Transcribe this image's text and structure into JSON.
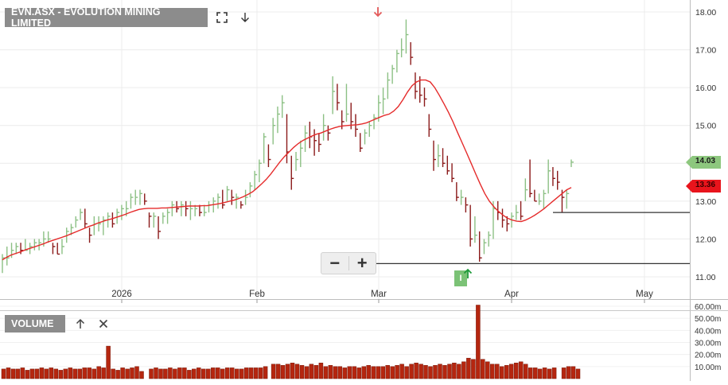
{
  "header": {
    "title": "EVN.ASX - EVOLUTION MINING LIMITED"
  },
  "toolbar": {
    "expand_icon": "expand-icon",
    "download_icon": "download-arrow-icon"
  },
  "volume_panel": {
    "title": "VOLUME",
    "up_icon": "arrow-up-icon",
    "close_icon": "close-icon"
  },
  "price_badges": {
    "last": "14.03",
    "sma": "13.36"
  },
  "marker": {
    "label": "I"
  },
  "zoom": {
    "minus": "−",
    "plus": "+"
  },
  "colors": {
    "up": "#8cc084",
    "down": "#8b1a1a",
    "sma": "#e52b2b",
    "volume": "#b5260f",
    "last_badge": "#8dc77e",
    "sma_badge": "#e8141c",
    "grid": "#ececec"
  },
  "chart_data": [
    {
      "type": "ohlc",
      "title": "EVN.ASX - EVOLUTION MINING LIMITED",
      "x_labels": [
        "2026",
        "Feb",
        "Mar",
        "Apr",
        "May"
      ],
      "y_ticks": [
        "11.00",
        "12.00",
        "13.00",
        "14.00",
        "15.00",
        "16.00",
        "17.00",
        "18.00"
      ],
      "ylim": [
        10.8,
        18.3
      ],
      "grid": true,
      "last_price": 14.03,
      "sma_last": 13.36,
      "horizontal_lines": [
        11.35,
        12.7
      ],
      "series": [
        {
          "values": [
            [
              11.6,
              11.1,
              11.5
            ],
            [
              11.8,
              11.3,
              11.5
            ],
            [
              11.9,
              11.5,
              11.7
            ],
            [
              11.9,
              11.6,
              11.8
            ],
            [
              11.9,
              11.6,
              11.7
            ],
            [
              12.0,
              11.7,
              11.7
            ],
            [
              11.9,
              11.6,
              11.8
            ],
            [
              12.0,
              11.7,
              11.9
            ],
            [
              12.0,
              11.7,
              11.9
            ],
            [
              12.2,
              11.8,
              12.0
            ],
            [
              12.2,
              11.9,
              12.0
            ],
            [
              11.9,
              11.6,
              11.8
            ],
            [
              11.9,
              11.6,
              11.6
            ],
            [
              12.0,
              11.6,
              11.8
            ],
            [
              12.3,
              11.9,
              12.2
            ],
            [
              12.4,
              12.1,
              12.3
            ],
            [
              12.6,
              12.3,
              12.5
            ],
            [
              12.8,
              12.5,
              12.7
            ],
            [
              12.8,
              12.3,
              12.4
            ],
            [
              12.3,
              11.9,
              12.1
            ],
            [
              12.6,
              12.1,
              12.4
            ],
            [
              12.6,
              12.2,
              12.4
            ],
            [
              12.6,
              12.1,
              12.5
            ],
            [
              12.7,
              12.3,
              12.6
            ],
            [
              12.7,
              12.3,
              12.4
            ],
            [
              12.8,
              12.4,
              12.7
            ],
            [
              12.9,
              12.5,
              12.8
            ],
            [
              13.0,
              12.6,
              12.8
            ],
            [
              13.2,
              12.8,
              13.1
            ],
            [
              13.3,
              12.9,
              13.1
            ],
            [
              13.3,
              12.9,
              13.2
            ],
            [
              13.2,
              12.9,
              13.0
            ],
            [
              12.7,
              12.3,
              12.6
            ],
            [
              12.7,
              12.3,
              12.6
            ],
            [
              12.6,
              12.0,
              12.2
            ],
            [
              12.7,
              12.4,
              12.6
            ],
            [
              12.8,
              12.4,
              12.7
            ],
            [
              13.0,
              12.6,
              12.9
            ],
            [
              13.0,
              12.7,
              12.8
            ],
            [
              13.0,
              12.6,
              12.9
            ],
            [
              13.0,
              12.6,
              12.8
            ],
            [
              13.0,
              12.5,
              12.8
            ],
            [
              12.9,
              12.6,
              12.8
            ],
            [
              12.9,
              12.6,
              12.7
            ],
            [
              12.9,
              12.6,
              12.7
            ],
            [
              13.0,
              12.7,
              12.9
            ],
            [
              13.1,
              12.7,
              13.0
            ],
            [
              13.2,
              12.8,
              13.1
            ],
            [
              13.3,
              12.8,
              12.9
            ],
            [
              13.4,
              13.0,
              13.3
            ],
            [
              13.3,
              12.9,
              13.1
            ],
            [
              13.2,
              12.8,
              13.1
            ],
            [
              13.0,
              12.8,
              12.9
            ],
            [
              13.3,
              12.9,
              13.1
            ],
            [
              13.5,
              13.1,
              13.4
            ],
            [
              13.8,
              13.3,
              13.7
            ],
            [
              14.1,
              13.5,
              14.0
            ],
            [
              14.8,
              14.0,
              14.7
            ],
            [
              14.5,
              13.9,
              14.1
            ],
            [
              15.2,
              14.5,
              15.0
            ],
            [
              15.5,
              14.8,
              15.3
            ],
            [
              15.8,
              15.2,
              15.6
            ],
            [
              15.3,
              14.0,
              14.3
            ],
            [
              14.2,
              13.3,
              13.6
            ],
            [
              14.3,
              13.8,
              14.1
            ],
            [
              14.6,
              13.9,
              14.4
            ],
            [
              15.0,
              14.3,
              14.8
            ],
            [
              15.1,
              14.4,
              14.7
            ],
            [
              14.9,
              14.2,
              14.6
            ],
            [
              14.8,
              14.3,
              14.5
            ],
            [
              15.3,
              14.6,
              15.0
            ],
            [
              15.0,
              14.6,
              14.8
            ],
            [
              16.3,
              15.3,
              15.9
            ],
            [
              16.1,
              15.4,
              15.6
            ],
            [
              15.4,
              14.9,
              15.1
            ],
            [
              16.1,
              15.1,
              15.3
            ],
            [
              15.6,
              14.9,
              15.1
            ],
            [
              15.3,
              14.7,
              14.9
            ],
            [
              14.8,
              14.3,
              14.4
            ],
            [
              14.9,
              14.5,
              14.8
            ],
            [
              15.1,
              14.7,
              15.0
            ],
            [
              15.3,
              14.9,
              15.2
            ],
            [
              15.8,
              15.1,
              15.6
            ],
            [
              16.0,
              15.3,
              15.7
            ],
            [
              16.4,
              15.7,
              16.2
            ],
            [
              16.6,
              16.1,
              16.5
            ],
            [
              17.0,
              16.4,
              16.9
            ],
            [
              17.3,
              16.8,
              17.0
            ],
            [
              17.8,
              16.9,
              17.4
            ],
            [
              17.2,
              16.6,
              16.8
            ],
            [
              16.4,
              15.7,
              15.9
            ],
            [
              16.3,
              15.6,
              15.8
            ],
            [
              16.0,
              15.5,
              15.7
            ],
            [
              15.3,
              14.7,
              14.9
            ],
            [
              14.6,
              13.8,
              14.1
            ],
            [
              14.5,
              13.9,
              14.2
            ],
            [
              14.4,
              13.9,
              14.0
            ],
            [
              14.2,
              13.7,
              13.8
            ],
            [
              14.0,
              13.5,
              13.6
            ],
            [
              13.5,
              13.0,
              13.1
            ],
            [
              13.3,
              12.9,
              13.1
            ],
            [
              13.1,
              12.7,
              12.9
            ],
            [
              12.9,
              11.8,
              12.0
            ],
            [
              12.6,
              11.9,
              12.1
            ],
            [
              12.2,
              11.4,
              11.5
            ],
            [
              12.0,
              11.6,
              11.9
            ],
            [
              12.2,
              11.8,
              12.1
            ],
            [
              13.0,
              12.0,
              12.8
            ],
            [
              13.0,
              12.5,
              12.7
            ],
            [
              12.8,
              12.3,
              12.5
            ],
            [
              12.6,
              12.2,
              12.4
            ],
            [
              12.7,
              12.3,
              12.6
            ],
            [
              12.9,
              12.5,
              12.7
            ],
            [
              13.0,
              12.5,
              12.6
            ],
            [
              13.6,
              13.0,
              13.3
            ],
            [
              14.1,
              13.1,
              13.2
            ],
            [
              13.3,
              13.0,
              13.0
            ],
            [
              13.2,
              12.9,
              13.0
            ],
            [
              13.3,
              12.8,
              13.2
            ],
            [
              14.1,
              13.2,
              13.8
            ],
            [
              13.9,
              13.4,
              13.6
            ],
            [
              13.8,
              13.3,
              13.5
            ],
            [
              13.3,
              12.7,
              13.1
            ],
            [
              13.3,
              12.8,
              13.2
            ],
            [
              14.1,
              13.9,
              14.03
            ]
          ],
          "sma": [
            11.45,
            11.52,
            11.58,
            11.62,
            11.66,
            11.71,
            11.75,
            11.79,
            11.83,
            11.87,
            11.92,
            11.96,
            12.0,
            12.04,
            12.08,
            12.13,
            12.18,
            12.23,
            12.28,
            12.33,
            12.37,
            12.42,
            12.46,
            12.5,
            12.53,
            12.57,
            12.61,
            12.65,
            12.7,
            12.74,
            12.78,
            12.8,
            12.81,
            12.81,
            12.81,
            12.82,
            12.82,
            12.83,
            12.84,
            12.85,
            12.86,
            12.87,
            12.87,
            12.87,
            12.88,
            12.88,
            12.9,
            12.92,
            12.94,
            12.97,
            13.0,
            13.03,
            13.07,
            13.12,
            13.18,
            13.25,
            13.35,
            13.46,
            13.58,
            13.72,
            13.88,
            14.04,
            14.18,
            14.3,
            14.42,
            14.52,
            14.6,
            14.66,
            14.72,
            14.77,
            14.8,
            14.85,
            14.9,
            14.94,
            14.97,
            14.99,
            15.0,
            15.01,
            15.02,
            15.04,
            15.07,
            15.12,
            15.17,
            15.22,
            15.27,
            15.3,
            15.38,
            15.5,
            15.68,
            15.88,
            16.05,
            16.15,
            16.2,
            16.2,
            16.15,
            16.0,
            15.8,
            15.58,
            15.35,
            15.1,
            14.82,
            14.55,
            14.28,
            14.0,
            13.72,
            13.45,
            13.2,
            13.0,
            12.85,
            12.73,
            12.63,
            12.55,
            12.5,
            12.47,
            12.46,
            12.5,
            12.56,
            12.63,
            12.71,
            12.8,
            12.9,
            13.0,
            13.1,
            13.2,
            13.3,
            13.36
          ]
        }
      ]
    },
    {
      "type": "bar",
      "title": "VOLUME",
      "y_ticks": [
        "10.00m",
        "20.00m",
        "30.00m",
        "40.00m",
        "50.00m",
        "60.00m"
      ],
      "ylim": [
        0,
        62
      ],
      "series": [
        {
          "name": "VOLUME",
          "values": [
            8,
            9,
            8,
            8,
            9,
            7,
            8,
            8,
            9,
            8,
            9,
            8,
            7,
            8,
            9,
            8,
            8,
            9,
            9,
            8,
            10,
            9,
            27,
            8,
            7,
            9,
            8,
            9,
            10,
            6,
            8,
            9,
            8,
            8,
            9,
            8,
            9,
            9,
            7,
            8,
            9,
            8,
            8,
            9,
            9,
            8,
            9,
            9,
            8,
            8,
            9,
            9,
            9,
            9,
            10,
            12,
            12,
            11,
            12,
            13,
            12,
            11,
            10,
            12,
            11,
            13,
            10,
            11,
            10,
            10,
            9,
            10,
            10,
            9,
            10,
            11,
            10,
            10,
            10,
            11,
            10,
            11,
            12,
            10,
            12,
            13,
            12,
            11,
            10,
            11,
            12,
            11,
            12,
            13,
            12,
            14,
            17,
            16,
            61,
            16,
            14,
            12,
            12,
            10,
            11,
            12,
            13,
            14,
            12,
            9,
            9,
            8,
            9,
            8,
            9,
            9,
            10,
            10,
            8
          ]
        }
      ]
    }
  ]
}
